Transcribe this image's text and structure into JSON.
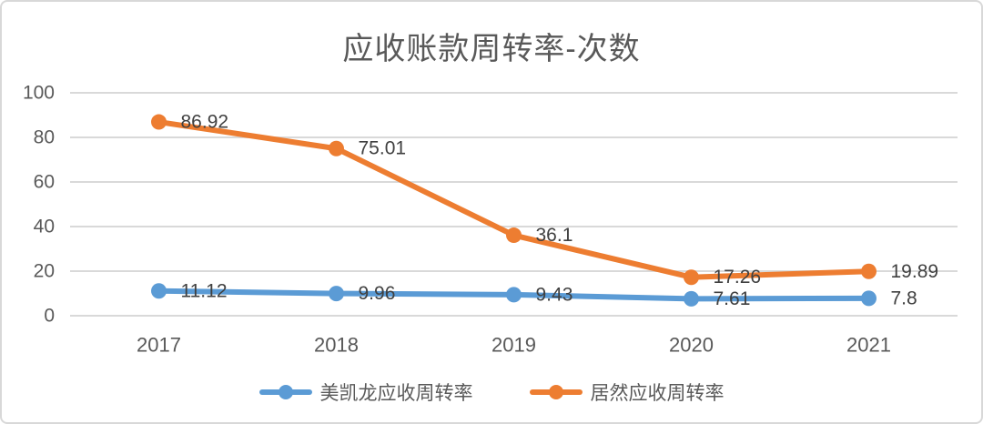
{
  "chart_data": {
    "type": "line",
    "title": "应收账款周转率-次数",
    "categories": [
      "2017",
      "2018",
      "2019",
      "2020",
      "2021"
    ],
    "series": [
      {
        "name": "美凯龙应收周转率",
        "color": "#5B9BD5",
        "values": [
          11.12,
          9.96,
          9.43,
          7.61,
          7.8
        ],
        "data_labels": [
          "11.12",
          "9.96",
          "9.43",
          "7.61",
          "7.8"
        ]
      },
      {
        "name": "居然应收周转率",
        "color": "#ED7D31",
        "values": [
          86.92,
          75.01,
          36.1,
          17.26,
          19.89
        ],
        "data_labels": [
          "86.92",
          "75.01",
          "36.1",
          "17.26",
          "19.89"
        ]
      }
    ],
    "xlabel": "",
    "ylabel": "",
    "y_axis": {
      "min": 0,
      "max": 100,
      "step": 20,
      "tick_labels": [
        "0",
        "20",
        "40",
        "60",
        "80",
        "100"
      ]
    },
    "grid": true,
    "legend_position": "bottom"
  },
  "colors": {
    "series_blue": "#5B9BD5",
    "series_orange": "#ED7D31",
    "gridline": "#D9D9D9",
    "axis_text": "#595959",
    "data_label_text": "#404040",
    "title_text": "#595959",
    "card_border": "#D8D8D8",
    "background": "#FFFFFF"
  }
}
